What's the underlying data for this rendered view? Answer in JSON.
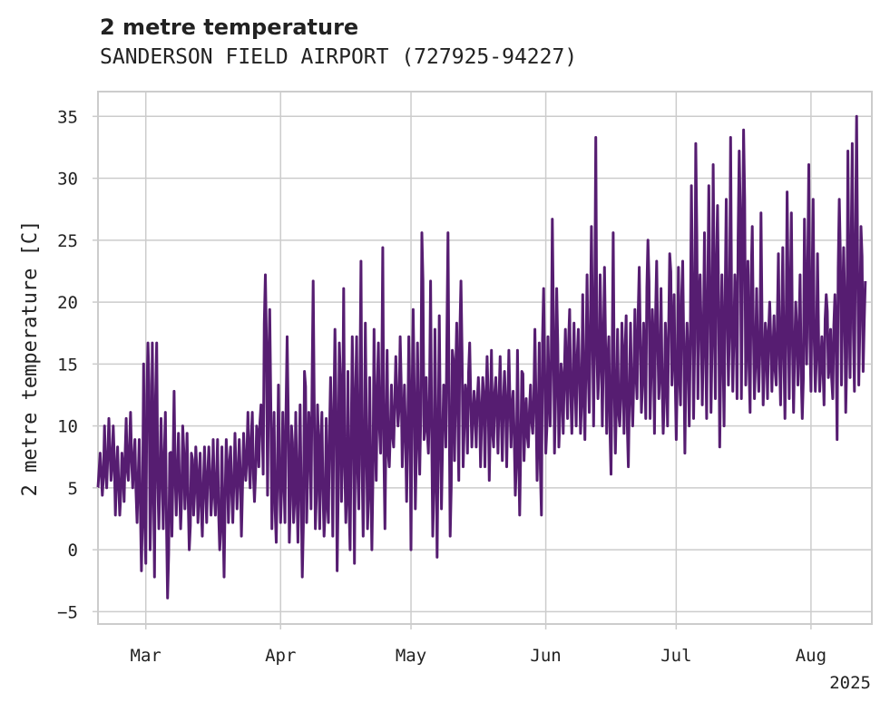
{
  "chart_data": {
    "type": "line",
    "title": "2 metre temperature",
    "subtitle": "SANDERSON FIELD AIRPORT (727925-94227)",
    "ylabel": "2 metre temperature [C]",
    "xlabel": "",
    "year_label": "2025",
    "ylim": [
      -6,
      37
    ],
    "xlim": [
      "2025-02-18",
      "2025-08-15"
    ],
    "grid": true,
    "legend": "none",
    "y_ticks": [
      -5,
      0,
      5,
      10,
      15,
      20,
      25,
      30,
      35
    ],
    "y_tick_labels": [
      "−5",
      "0",
      "5",
      "10",
      "15",
      "20",
      "25",
      "30",
      "35"
    ],
    "x_ticks": [
      "2025-03-01",
      "2025-04-01",
      "2025-05-01",
      "2025-06-01",
      "2025-07-01",
      "2025-08-01"
    ],
    "x_tick_labels": [
      "Mar",
      "Apr",
      "May",
      "Jun",
      "Jul",
      "Aug"
    ],
    "series": [
      {
        "color": "#561d71",
        "x": [
          "2025-02-18",
          "2025-02-19",
          "2025-02-20",
          "2025-02-21",
          "2025-02-22",
          "2025-02-23",
          "2025-02-24",
          "2025-02-25",
          "2025-02-26",
          "2025-02-27",
          "2025-02-28",
          "2025-03-01",
          "2025-03-02",
          "2025-03-03",
          "2025-03-04",
          "2025-03-05",
          "2025-03-06",
          "2025-03-07",
          "2025-03-08",
          "2025-03-09",
          "2025-03-10",
          "2025-03-11",
          "2025-03-12",
          "2025-03-13",
          "2025-03-14",
          "2025-03-15",
          "2025-03-16",
          "2025-03-17",
          "2025-03-18",
          "2025-03-19",
          "2025-03-20",
          "2025-03-21",
          "2025-03-22",
          "2025-03-23",
          "2025-03-24",
          "2025-03-25",
          "2025-03-26",
          "2025-03-27",
          "2025-03-28",
          "2025-03-29",
          "2025-03-30",
          "2025-03-31",
          "2025-04-01",
          "2025-04-02",
          "2025-04-03",
          "2025-04-04",
          "2025-04-05",
          "2025-04-06",
          "2025-04-07",
          "2025-04-08",
          "2025-04-09",
          "2025-04-10",
          "2025-04-11",
          "2025-04-12",
          "2025-04-13",
          "2025-04-14",
          "2025-04-15",
          "2025-04-16",
          "2025-04-17",
          "2025-04-18",
          "2025-04-19",
          "2025-04-20",
          "2025-04-21",
          "2025-04-22",
          "2025-04-23",
          "2025-04-24",
          "2025-04-25",
          "2025-04-26",
          "2025-04-27",
          "2025-04-28",
          "2025-04-29",
          "2025-04-30",
          "2025-05-01",
          "2025-05-02",
          "2025-05-03",
          "2025-05-04",
          "2025-05-05",
          "2025-05-06",
          "2025-05-07",
          "2025-05-08",
          "2025-05-09",
          "2025-05-10",
          "2025-05-11",
          "2025-05-12",
          "2025-05-13",
          "2025-05-14",
          "2025-05-15",
          "2025-05-16",
          "2025-05-17",
          "2025-05-18",
          "2025-05-19",
          "2025-05-20",
          "2025-05-21",
          "2025-05-22",
          "2025-05-23",
          "2025-05-24",
          "2025-05-25",
          "2025-05-26",
          "2025-05-27",
          "2025-05-28",
          "2025-05-29",
          "2025-05-30",
          "2025-05-31",
          "2025-06-01",
          "2025-06-02",
          "2025-06-03",
          "2025-06-04",
          "2025-06-05",
          "2025-06-06",
          "2025-06-07",
          "2025-06-08",
          "2025-06-09",
          "2025-06-10",
          "2025-06-11",
          "2025-06-12",
          "2025-06-13",
          "2025-06-14",
          "2025-06-15",
          "2025-06-16",
          "2025-06-17",
          "2025-06-18",
          "2025-06-19",
          "2025-06-20",
          "2025-06-21",
          "2025-06-22",
          "2025-06-23",
          "2025-06-24",
          "2025-06-25",
          "2025-06-26",
          "2025-06-27",
          "2025-06-28",
          "2025-06-29",
          "2025-06-30",
          "2025-07-01",
          "2025-07-02",
          "2025-07-03",
          "2025-07-04",
          "2025-07-05",
          "2025-07-06",
          "2025-07-07",
          "2025-07-08",
          "2025-07-09",
          "2025-07-10",
          "2025-07-11",
          "2025-07-12",
          "2025-07-13",
          "2025-07-14",
          "2025-07-15",
          "2025-07-16",
          "2025-07-17",
          "2025-07-18",
          "2025-07-19",
          "2025-07-20",
          "2025-07-21",
          "2025-07-22",
          "2025-07-23",
          "2025-07-24",
          "2025-07-25",
          "2025-07-26",
          "2025-07-27",
          "2025-07-28",
          "2025-07-29",
          "2025-07-30",
          "2025-07-31",
          "2025-08-01",
          "2025-08-02",
          "2025-08-03",
          "2025-08-04",
          "2025-08-05",
          "2025-08-06",
          "2025-08-07",
          "2025-08-08",
          "2025-08-09",
          "2025-08-10",
          "2025-08-11",
          "2025-08-12",
          "2025-08-13",
          "2025-08-14",
          "2025-08-15"
        ],
        "max": [
          7.8,
          10.0,
          10.6,
          10.0,
          8.3,
          7.8,
          10.6,
          11.1,
          8.9,
          8.9,
          15.0,
          16.7,
          16.7,
          16.7,
          10.6,
          11.1,
          7.8,
          12.8,
          9.4,
          10.0,
          9.4,
          7.8,
          8.3,
          7.8,
          8.3,
          8.3,
          8.9,
          8.9,
          8.3,
          8.9,
          8.3,
          9.4,
          8.9,
          9.4,
          11.1,
          11.1,
          10.0,
          11.7,
          22.2,
          19.4,
          11.1,
          13.3,
          11.1,
          17.2,
          10.0,
          11.1,
          11.7,
          14.4,
          11.1,
          21.7,
          11.7,
          11.1,
          10.6,
          13.9,
          17.8,
          16.7,
          21.1,
          14.4,
          17.2,
          17.2,
          23.3,
          18.3,
          13.9,
          17.8,
          16.7,
          24.4,
          16.1,
          13.3,
          15.6,
          17.2,
          13.3,
          17.2,
          19.4,
          16.7,
          25.6,
          13.9,
          21.7,
          17.8,
          18.9,
          13.3,
          25.6,
          16.1,
          18.3,
          21.7,
          13.3,
          16.7,
          12.8,
          13.9,
          13.9,
          15.6,
          16.1,
          13.9,
          15.6,
          14.4,
          16.1,
          12.8,
          16.1,
          14.4,
          12.2,
          13.3,
          17.8,
          16.7,
          21.1,
          17.2,
          26.7,
          21.1,
          15.0,
          17.8,
          19.4,
          18.3,
          17.8,
          20.6,
          22.2,
          26.1,
          33.3,
          22.2,
          22.8,
          17.2,
          25.6,
          17.8,
          18.3,
          18.9,
          18.3,
          19.4,
          22.8,
          18.3,
          25.0,
          19.4,
          23.3,
          21.1,
          18.3,
          23.9,
          20.6,
          22.8,
          23.3,
          18.3,
          29.4,
          32.8,
          22.2,
          25.6,
          29.4,
          31.1,
          27.8,
          22.2,
          28.3,
          33.3,
          22.2,
          32.2,
          33.9,
          23.3,
          26.1,
          21.1,
          27.2,
          18.3,
          20.0,
          18.9,
          23.9,
          24.4,
          28.9,
          27.2,
          20.0,
          22.2,
          26.7,
          31.1,
          28.3,
          23.9,
          17.2,
          20.6,
          17.8,
          20.6,
          28.3,
          24.4,
          32.2,
          32.8,
          35.0,
          26.1,
          21.7
        ],
        "min": [
          5.0,
          4.4,
          5.0,
          5.6,
          2.8,
          2.8,
          3.9,
          5.6,
          5.0,
          2.2,
          -1.7,
          -1.1,
          0.0,
          -2.2,
          1.7,
          1.7,
          -3.9,
          1.1,
          2.8,
          1.7,
          3.3,
          0.0,
          2.8,
          2.2,
          1.1,
          2.2,
          2.8,
          2.8,
          0.0,
          -2.2,
          2.2,
          2.2,
          3.3,
          1.1,
          5.6,
          5.0,
          3.9,
          6.7,
          6.1,
          4.4,
          1.7,
          0.6,
          2.2,
          2.2,
          0.6,
          2.2,
          0.6,
          -2.2,
          2.2,
          3.3,
          1.7,
          1.7,
          1.1,
          2.2,
          1.1,
          -1.7,
          3.9,
          2.2,
          0.0,
          -1.1,
          3.3,
          1.1,
          1.7,
          0.0,
          5.6,
          7.8,
          1.7,
          6.7,
          8.3,
          10.0,
          6.7,
          3.9,
          0.0,
          3.3,
          6.1,
          8.9,
          7.8,
          1.1,
          -0.6,
          3.3,
          8.3,
          1.1,
          7.2,
          5.6,
          6.7,
          7.8,
          8.3,
          8.3,
          6.7,
          6.7,
          5.6,
          8.3,
          7.8,
          7.2,
          6.7,
          8.3,
          4.4,
          2.8,
          7.2,
          8.3,
          9.4,
          5.6,
          2.8,
          7.8,
          10.0,
          7.8,
          8.3,
          9.4,
          10.6,
          9.4,
          10.0,
          9.4,
          8.9,
          11.1,
          10.0,
          12.2,
          10.0,
          9.4,
          6.1,
          7.8,
          10.0,
          9.4,
          6.7,
          10.0,
          12.2,
          11.1,
          10.6,
          10.6,
          9.4,
          12.2,
          9.4,
          10.0,
          13.3,
          8.9,
          11.7,
          7.8,
          10.0,
          10.6,
          12.2,
          11.7,
          10.6,
          11.1,
          12.2,
          8.3,
          10.0,
          13.3,
          12.8,
          12.2,
          12.2,
          13.3,
          11.1,
          12.2,
          12.8,
          11.7,
          12.2,
          12.8,
          13.3,
          11.7,
          10.6,
          12.2,
          11.1,
          13.3,
          10.6,
          15.0,
          12.8,
          12.8,
          12.8,
          11.7,
          13.9,
          12.2,
          8.9,
          13.3,
          11.1,
          13.9,
          12.8,
          13.3,
          14.4
        ]
      }
    ]
  }
}
